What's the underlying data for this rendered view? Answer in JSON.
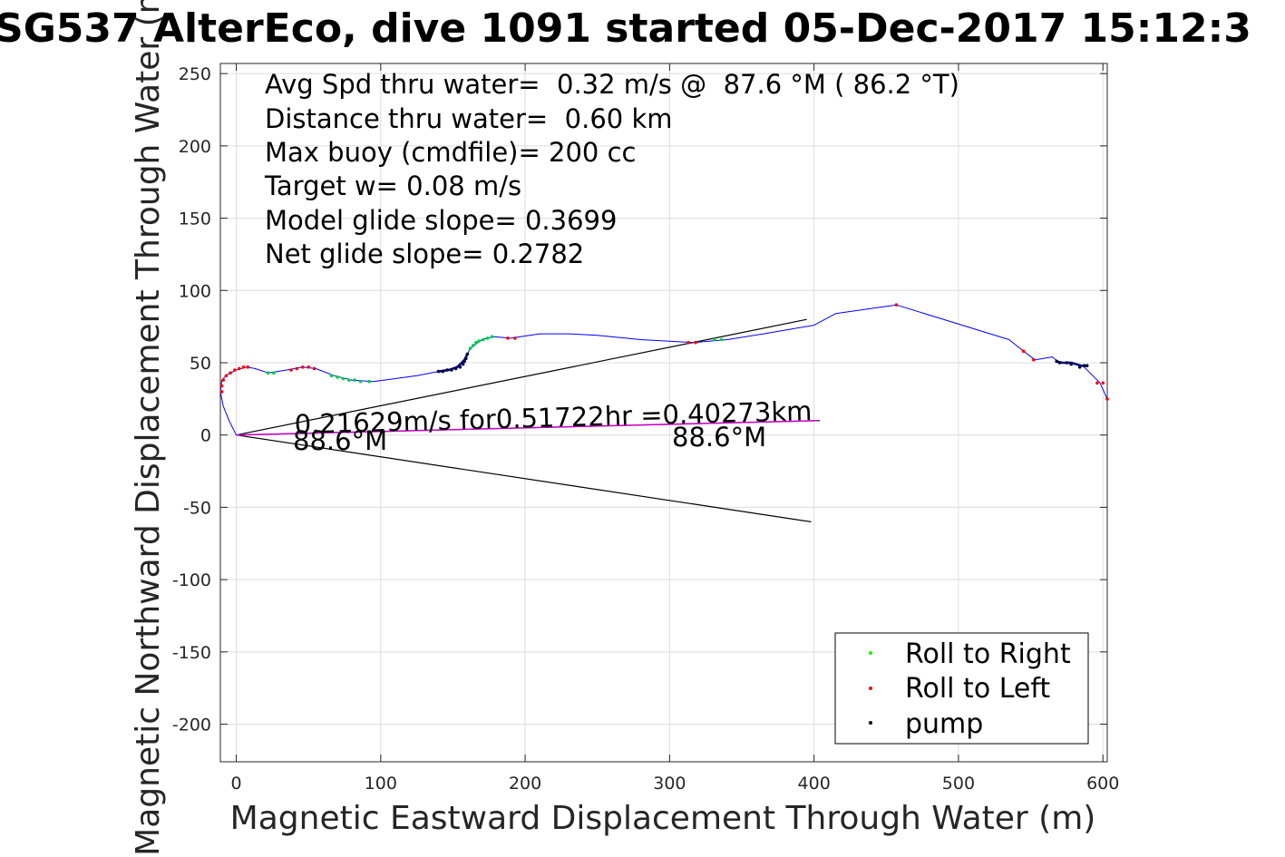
{
  "title": "SG537 AlterEco, dive 1091 started 05-Dec-2017 15:12:3",
  "info_lines": [
    "Avg Spd thru water=  0.32 m/s @  87.6 °M ( 86.2 °T)",
    "Distance thru water=  0.60 km",
    "Max buoy (cmdfile)= 200 cc",
    "Target w= 0.08 m/s",
    "Model glide slope= 0.3699",
    "Net glide slope= 0.2782"
  ],
  "annotations": {
    "current_text": "0.21629m/s for0.51722hr =0.40273km",
    "heading_left": "88.6°M",
    "heading_right": "88.6°M"
  },
  "legend": [
    {
      "label": "Roll to Right",
      "color": "#00ff00"
    },
    {
      "label": "Roll to Left",
      "color": "#ff0000"
    },
    {
      "label": "pump",
      "color": "#000000"
    }
  ],
  "chart_data": {
    "type": "line",
    "xlabel": "Magnetic Eastward Displacement Through Water (m)",
    "ylabel": "Magnetic Northward Displacement Through Water (m)",
    "xlim": [
      -11,
      603
    ],
    "ylim": [
      -226,
      257
    ],
    "xticks": [
      0,
      100,
      200,
      300,
      400,
      500,
      600
    ],
    "yticks": [
      250,
      200,
      150,
      100,
      50,
      0,
      -50,
      -100,
      -150,
      -200
    ],
    "grid": true,
    "legend_position": "bottom-right",
    "track": {
      "color": "#0000ff",
      "points": [
        [
          0,
          0
        ],
        [
          -5,
          10
        ],
        [
          -9,
          20
        ],
        [
          -11,
          30
        ],
        [
          -10,
          38
        ],
        [
          -6,
          42
        ],
        [
          0,
          45
        ],
        [
          7,
          47
        ],
        [
          13,
          46
        ],
        [
          22,
          43
        ],
        [
          35,
          45
        ],
        [
          46,
          47
        ],
        [
          55,
          46
        ],
        [
          68,
          41
        ],
        [
          80,
          38
        ],
        [
          95,
          37
        ],
        [
          110,
          39
        ],
        [
          125,
          41
        ],
        [
          140,
          44
        ],
        [
          150,
          46
        ],
        [
          157,
          50
        ],
        [
          160,
          56
        ],
        [
          162,
          60
        ],
        [
          170,
          66
        ],
        [
          178,
          68
        ],
        [
          190,
          67
        ],
        [
          210,
          70
        ],
        [
          230,
          70
        ],
        [
          250,
          69
        ],
        [
          280,
          66
        ],
        [
          316,
          64
        ],
        [
          340,
          66
        ],
        [
          365,
          70
        ],
        [
          400,
          76
        ],
        [
          415,
          84
        ],
        [
          457,
          90
        ],
        [
          535,
          66
        ],
        [
          545,
          58
        ],
        [
          553,
          52
        ],
        [
          565,
          54
        ],
        [
          570,
          50
        ],
        [
          577,
          50
        ],
        [
          586,
          48
        ],
        [
          592,
          42
        ],
        [
          598,
          36
        ],
        [
          603,
          25
        ]
      ]
    },
    "pump_segments": [
      {
        "color": "#000080",
        "points": [
          [
            140,
            44
          ],
          [
            147,
            45
          ],
          [
            153,
            47
          ],
          [
            158,
            52
          ],
          [
            160,
            56
          ]
        ]
      },
      {
        "color": "#000080",
        "points": [
          [
            567,
            51
          ],
          [
            572,
            50
          ],
          [
            578,
            50
          ],
          [
            585,
            48
          ],
          [
            589,
            48
          ]
        ]
      }
    ],
    "roll_right_points": [
      [
        22,
        43
      ],
      [
        26,
        43
      ],
      [
        66,
        41
      ],
      [
        70,
        40
      ],
      [
        74,
        39
      ],
      [
        78,
        38
      ],
      [
        82,
        38
      ],
      [
        86,
        37
      ],
      [
        92,
        37
      ],
      [
        162,
        60
      ],
      [
        164,
        62
      ],
      [
        166,
        64
      ],
      [
        168,
        65
      ],
      [
        171,
        66
      ],
      [
        174,
        67
      ],
      [
        177,
        68
      ],
      [
        331,
        66
      ],
      [
        336,
        66
      ]
    ],
    "roll_left_points": [
      [
        -10,
        30
      ],
      [
        -10,
        34
      ],
      [
        -9,
        38
      ],
      [
        -7,
        41
      ],
      [
        -4,
        43
      ],
      [
        -1,
        45
      ],
      [
        2,
        46
      ],
      [
        5,
        47
      ],
      [
        8,
        47
      ],
      [
        38,
        45
      ],
      [
        42,
        46
      ],
      [
        46,
        47
      ],
      [
        50,
        47
      ],
      [
        54,
        46
      ],
      [
        188,
        67
      ],
      [
        193,
        67
      ],
      [
        313,
        64
      ],
      [
        318,
        64
      ],
      [
        457,
        90
      ],
      [
        545,
        58
      ],
      [
        552,
        52
      ],
      [
        596,
        36
      ],
      [
        600,
        36
      ],
      [
        603,
        25
      ]
    ],
    "pump_points": [
      [
        140,
        44
      ],
      [
        143,
        44
      ],
      [
        146,
        45
      ],
      [
        149,
        45
      ],
      [
        152,
        46
      ],
      [
        155,
        47
      ],
      [
        157,
        49
      ],
      [
        158,
        51
      ],
      [
        159,
        53
      ],
      [
        160,
        56
      ],
      [
        568,
        51
      ],
      [
        570,
        50
      ],
      [
        575,
        50
      ],
      [
        578,
        49
      ],
      [
        584,
        47
      ],
      [
        587,
        48
      ],
      [
        589,
        48
      ]
    ],
    "glide_envelope": {
      "color": "#000000",
      "upper": [
        [
          0,
          0
        ],
        [
          395,
          80
        ]
      ],
      "lower": [
        [
          0,
          0
        ],
        [
          398,
          -60
        ]
      ]
    },
    "current_vector": {
      "color": "#cc00cc",
      "points": [
        [
          0,
          0
        ],
        [
          402,
          10
        ]
      ]
    },
    "current_vector_outline": {
      "color": "#000000",
      "points": [
        [
          0,
          0
        ],
        [
          404,
          10
        ]
      ]
    }
  }
}
